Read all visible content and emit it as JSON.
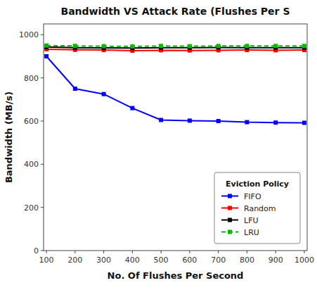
{
  "chart_data": {
    "type": "line",
    "title": "Bandwidth VS Attack Rate (Flushes Per S",
    "xlabel": "No. Of Flushes Per Second",
    "ylabel": "Bandwidth (MB/s)",
    "x": [
      100,
      200,
      300,
      400,
      500,
      600,
      700,
      800,
      900,
      1000
    ],
    "series": [
      {
        "name": "FIFO",
        "color": "#0000FF",
        "marker": "square",
        "line_style": "solid",
        "values": [
          900,
          750,
          725,
          660,
          605,
          602,
          600,
          595,
          593,
          592
        ]
      },
      {
        "name": "Random",
        "color": "#FF0000",
        "marker": "square",
        "line_style": "solid",
        "values": [
          933,
          930,
          929,
          926,
          928,
          927,
          928,
          929,
          928,
          929
        ]
      },
      {
        "name": "LFU",
        "color": "#000000",
        "marker": "square",
        "line_style": "solid",
        "values": [
          943,
          940,
          939,
          938,
          940,
          940,
          941,
          940,
          940,
          940
        ]
      },
      {
        "name": "LRU",
        "color": "#00BB00",
        "marker": "square",
        "line_style": "dashed",
        "values": [
          950,
          948,
          947,
          946,
          948,
          947,
          948,
          948,
          948,
          948
        ]
      }
    ],
    "xlim": [
      90,
      1010
    ],
    "ylim": [
      0,
      1050
    ],
    "xticks": [
      100,
      200,
      300,
      400,
      500,
      600,
      700,
      800,
      900,
      1000
    ],
    "yticks": [
      0,
      200,
      400,
      600,
      800,
      1000
    ],
    "legend": "lower right",
    "legend_title": "Eviction Policy",
    "grid": false
  }
}
